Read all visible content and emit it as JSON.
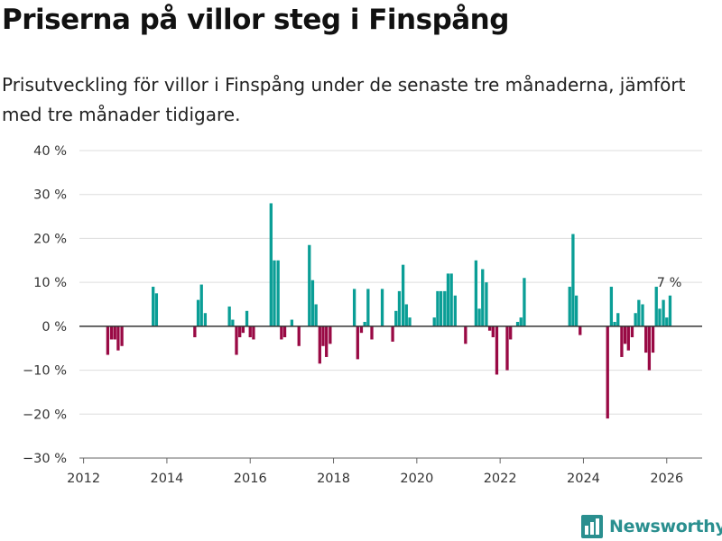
{
  "header": {
    "title": "Priserna på villor steg i Finspång",
    "subtitle": "Prisutveckling för villor i Finspång under de senaste tre månaderna, jämfört med tre månader tidigare."
  },
  "brand": {
    "name": "Newsworthy"
  },
  "colors": {
    "positive": "#0a9e96",
    "negative": "#990944",
    "grid": "#dddddd",
    "zero_line": "#333333",
    "logo": "#2a8f8f"
  },
  "chart_data": {
    "type": "bar",
    "title": "Priserna på villor steg i Finspång",
    "xlabel": "",
    "ylabel": "",
    "xlim": [
      2011.9,
      2026.85
    ],
    "ylim": [
      -30,
      40
    ],
    "x_ticks": [
      2012,
      2014,
      2016,
      2018,
      2020,
      2022,
      2024,
      2026
    ],
    "x_tick_labels": [
      "2012",
      "2014",
      "2016",
      "2018",
      "2020",
      "2022",
      "2024",
      "2026"
    ],
    "y_ticks": [
      -30,
      -20,
      -10,
      0,
      10,
      20,
      30,
      40
    ],
    "y_tick_labels": [
      "−30 %",
      "−20 %",
      "−10 %",
      "0 %",
      "10 %",
      "20 %",
      "30 %",
      "40 %"
    ],
    "grid": true,
    "annotation": {
      "x": 2026.04,
      "y": 7,
      "text": "7 %"
    },
    "series": [
      {
        "name": "Prisutveckling",
        "x": [
          2012.58,
          2012.67,
          2012.75,
          2012.83,
          2012.92,
          2013.67,
          2013.75,
          2014.67,
          2014.75,
          2014.83,
          2014.92,
          2015.5,
          2015.58,
          2015.67,
          2015.75,
          2015.83,
          2015.92,
          2016.0,
          2016.08,
          2016.5,
          2016.58,
          2016.67,
          2016.75,
          2016.83,
          2017.0,
          2017.17,
          2017.42,
          2017.5,
          2017.58,
          2017.67,
          2017.75,
          2017.83,
          2017.92,
          2018.5,
          2018.58,
          2018.67,
          2018.75,
          2018.83,
          2018.92,
          2019.17,
          2019.42,
          2019.5,
          2019.58,
          2019.67,
          2019.75,
          2019.83,
          2020.42,
          2020.5,
          2020.58,
          2020.67,
          2020.75,
          2020.83,
          2020.92,
          2021.17,
          2021.42,
          2021.5,
          2021.58,
          2021.67,
          2021.75,
          2021.83,
          2021.92,
          2022.17,
          2022.25,
          2022.42,
          2022.5,
          2022.58,
          2023.67,
          2023.75,
          2023.83,
          2023.92,
          2024.58,
          2024.67,
          2024.75,
          2024.83,
          2024.92,
          2025.0,
          2025.08,
          2025.17,
          2025.25,
          2025.33,
          2025.42,
          2025.5,
          2025.58,
          2025.67,
          2025.75,
          2025.83,
          2025.92,
          2026.0,
          2026.08
        ],
        "values": [
          -6.5,
          -3,
          -3,
          -5.5,
          -4.5,
          9,
          7.5,
          -2.5,
          6,
          9.5,
          3,
          4.5,
          1.5,
          -6.5,
          -2.5,
          -1.5,
          3.5,
          -2.5,
          -3,
          28,
          15,
          15,
          -3,
          -2.5,
          1.5,
          -4.5,
          18.5,
          10.5,
          5,
          -8.5,
          -4.5,
          -7,
          -4,
          8.5,
          -7.5,
          -1.5,
          1,
          8.5,
          -3,
          8.5,
          -3.5,
          3.5,
          8,
          14,
          5,
          2,
          2,
          8,
          8,
          8,
          12,
          12,
          7,
          -4,
          15,
          4,
          13,
          10,
          -1,
          -2.5,
          -11,
          -10,
          -3,
          1,
          2,
          11,
          9,
          21,
          7,
          -2,
          -21,
          9,
          1,
          3,
          -7,
          -4,
          -5.5,
          -2.5,
          3,
          6,
          5,
          -6,
          -10,
          -6,
          9,
          4,
          6,
          2,
          7
        ]
      }
    ]
  }
}
